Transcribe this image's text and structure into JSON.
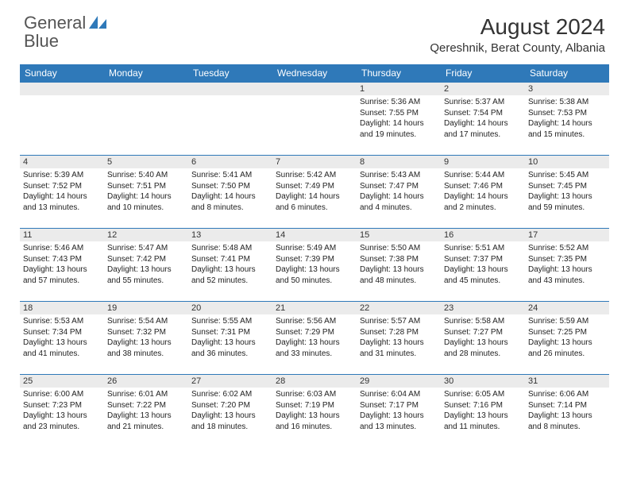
{
  "logo": {
    "text1": "General",
    "text2": "Blue",
    "text_color": "#555555",
    "accent_color": "#2f79b9"
  },
  "title": "August 2024",
  "location": "Qereshnik, Berat County, Albania",
  "header_bg": "#2f79b9",
  "header_fg": "#ffffff",
  "daynum_bg": "#ebebeb",
  "border_color": "#2f79b9",
  "weekdays": [
    "Sunday",
    "Monday",
    "Tuesday",
    "Wednesday",
    "Thursday",
    "Friday",
    "Saturday"
  ],
  "weeks": [
    [
      null,
      null,
      null,
      null,
      {
        "n": "1",
        "sr": "5:36 AM",
        "ss": "7:55 PM",
        "dl": "14 hours and 19 minutes."
      },
      {
        "n": "2",
        "sr": "5:37 AM",
        "ss": "7:54 PM",
        "dl": "14 hours and 17 minutes."
      },
      {
        "n": "3",
        "sr": "5:38 AM",
        "ss": "7:53 PM",
        "dl": "14 hours and 15 minutes."
      }
    ],
    [
      {
        "n": "4",
        "sr": "5:39 AM",
        "ss": "7:52 PM",
        "dl": "14 hours and 13 minutes."
      },
      {
        "n": "5",
        "sr": "5:40 AM",
        "ss": "7:51 PM",
        "dl": "14 hours and 10 minutes."
      },
      {
        "n": "6",
        "sr": "5:41 AM",
        "ss": "7:50 PM",
        "dl": "14 hours and 8 minutes."
      },
      {
        "n": "7",
        "sr": "5:42 AM",
        "ss": "7:49 PM",
        "dl": "14 hours and 6 minutes."
      },
      {
        "n": "8",
        "sr": "5:43 AM",
        "ss": "7:47 PM",
        "dl": "14 hours and 4 minutes."
      },
      {
        "n": "9",
        "sr": "5:44 AM",
        "ss": "7:46 PM",
        "dl": "14 hours and 2 minutes."
      },
      {
        "n": "10",
        "sr": "5:45 AM",
        "ss": "7:45 PM",
        "dl": "13 hours and 59 minutes."
      }
    ],
    [
      {
        "n": "11",
        "sr": "5:46 AM",
        "ss": "7:43 PM",
        "dl": "13 hours and 57 minutes."
      },
      {
        "n": "12",
        "sr": "5:47 AM",
        "ss": "7:42 PM",
        "dl": "13 hours and 55 minutes."
      },
      {
        "n": "13",
        "sr": "5:48 AM",
        "ss": "7:41 PM",
        "dl": "13 hours and 52 minutes."
      },
      {
        "n": "14",
        "sr": "5:49 AM",
        "ss": "7:39 PM",
        "dl": "13 hours and 50 minutes."
      },
      {
        "n": "15",
        "sr": "5:50 AM",
        "ss": "7:38 PM",
        "dl": "13 hours and 48 minutes."
      },
      {
        "n": "16",
        "sr": "5:51 AM",
        "ss": "7:37 PM",
        "dl": "13 hours and 45 minutes."
      },
      {
        "n": "17",
        "sr": "5:52 AM",
        "ss": "7:35 PM",
        "dl": "13 hours and 43 minutes."
      }
    ],
    [
      {
        "n": "18",
        "sr": "5:53 AM",
        "ss": "7:34 PM",
        "dl": "13 hours and 41 minutes."
      },
      {
        "n": "19",
        "sr": "5:54 AM",
        "ss": "7:32 PM",
        "dl": "13 hours and 38 minutes."
      },
      {
        "n": "20",
        "sr": "5:55 AM",
        "ss": "7:31 PM",
        "dl": "13 hours and 36 minutes."
      },
      {
        "n": "21",
        "sr": "5:56 AM",
        "ss": "7:29 PM",
        "dl": "13 hours and 33 minutes."
      },
      {
        "n": "22",
        "sr": "5:57 AM",
        "ss": "7:28 PM",
        "dl": "13 hours and 31 minutes."
      },
      {
        "n": "23",
        "sr": "5:58 AM",
        "ss": "7:27 PM",
        "dl": "13 hours and 28 minutes."
      },
      {
        "n": "24",
        "sr": "5:59 AM",
        "ss": "7:25 PM",
        "dl": "13 hours and 26 minutes."
      }
    ],
    [
      {
        "n": "25",
        "sr": "6:00 AM",
        "ss": "7:23 PM",
        "dl": "13 hours and 23 minutes."
      },
      {
        "n": "26",
        "sr": "6:01 AM",
        "ss": "7:22 PM",
        "dl": "13 hours and 21 minutes."
      },
      {
        "n": "27",
        "sr": "6:02 AM",
        "ss": "7:20 PM",
        "dl": "13 hours and 18 minutes."
      },
      {
        "n": "28",
        "sr": "6:03 AM",
        "ss": "7:19 PM",
        "dl": "13 hours and 16 minutes."
      },
      {
        "n": "29",
        "sr": "6:04 AM",
        "ss": "7:17 PM",
        "dl": "13 hours and 13 minutes."
      },
      {
        "n": "30",
        "sr": "6:05 AM",
        "ss": "7:16 PM",
        "dl": "13 hours and 11 minutes."
      },
      {
        "n": "31",
        "sr": "6:06 AM",
        "ss": "7:14 PM",
        "dl": "13 hours and 8 minutes."
      }
    ]
  ],
  "labels": {
    "sunrise": "Sunrise:",
    "sunset": "Sunset:",
    "daylight": "Daylight:"
  }
}
